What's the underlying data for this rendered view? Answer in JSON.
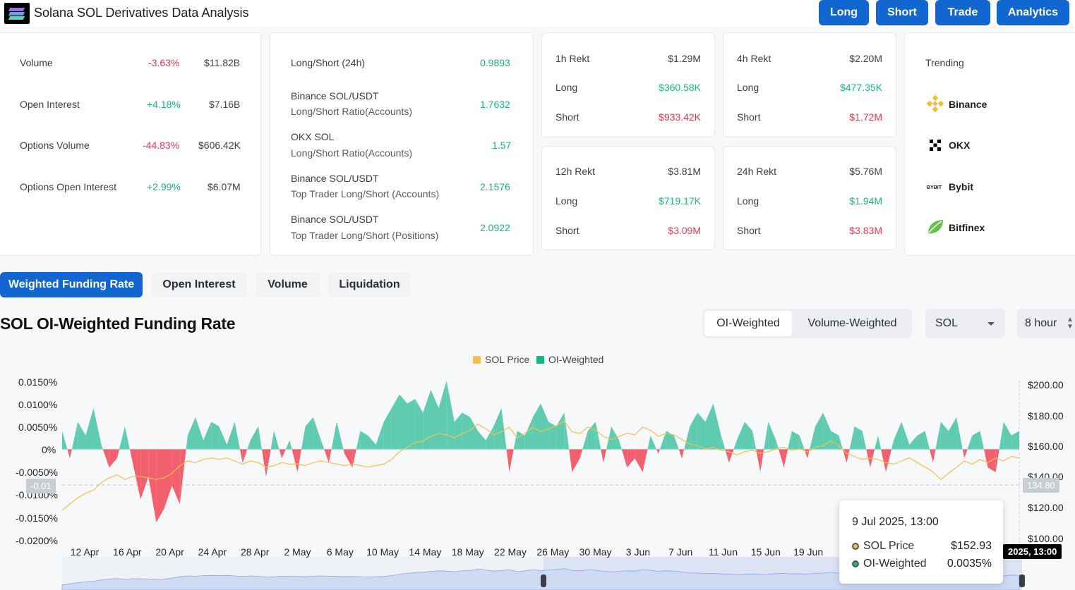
{
  "header": {
    "title": "Solana SOL Derivatives Data Analysis",
    "buttons": [
      "Long",
      "Short",
      "Trade",
      "Analytics"
    ],
    "accent": "#1266cf"
  },
  "overview": {
    "rows": [
      {
        "label": "Volume",
        "change": "-3.63%",
        "value": "$11.82B",
        "dir": "neg"
      },
      {
        "label": "Open Interest",
        "change": "+4.18%",
        "value": "$7.16B",
        "dir": "pos"
      },
      {
        "label": "Options Volume",
        "change": "-44.83%",
        "value": "$606.42K",
        "dir": "neg"
      },
      {
        "label": "Options Open Interest",
        "change": "+2.99%",
        "value": "$6.07M",
        "dir": "pos"
      }
    ]
  },
  "ratios": {
    "rows": [
      {
        "line1": "Long/Short (24h)",
        "line2": "",
        "value": "0.9893"
      },
      {
        "line1": "Binance SOL/USDT",
        "line2": "Long/Short Ratio(Accounts)",
        "value": "1.7632"
      },
      {
        "line1": "OKX SOL",
        "line2": "Long/Short Ratio(Accounts)",
        "value": "1.57"
      },
      {
        "line1": "Binance SOL/USDT",
        "line2": "Top Trader Long/Short (Accounts)",
        "value": "2.1576"
      },
      {
        "line1": "Binance SOL/USDT",
        "line2": "Top Trader Long/Short (Positions)",
        "value": "2.0922"
      }
    ]
  },
  "rekt": {
    "cards": [
      {
        "title": "1h Rekt",
        "total": "$1.29M",
        "long_label": "Long",
        "long": "$360.58K",
        "short_label": "Short",
        "short": "$933.42K"
      },
      {
        "title": "4h Rekt",
        "total": "$2.20M",
        "long_label": "Long",
        "long": "$477.35K",
        "short_label": "Short",
        "short": "$1.72M"
      },
      {
        "title": "12h Rekt",
        "total": "$3.81M",
        "long_label": "Long",
        "long": "$719.17K",
        "short_label": "Short",
        "short": "$3.09M"
      },
      {
        "title": "24h Rekt",
        "total": "$5.76M",
        "long_label": "Long",
        "long": "$1.94M",
        "short_label": "Short",
        "short": "$3.83M"
      }
    ]
  },
  "trending": {
    "title": "Trending",
    "exchanges": [
      {
        "name": "Binance",
        "icon": "binance-icon"
      },
      {
        "name": "OKX",
        "icon": "okx-icon"
      },
      {
        "name": "Bybit",
        "icon": "bybit-icon"
      },
      {
        "name": "Bitfinex",
        "icon": "bitfinex-icon"
      }
    ]
  },
  "tabs": [
    "Weighted Funding Rate",
    "Open Interest",
    "Volume",
    "Liquidation"
  ],
  "chart_header": {
    "title": "SOL OI-Weighted Funding Rate",
    "weighting_options": [
      "OI-Weighted",
      "Volume-Weighted"
    ],
    "coin": "SOL",
    "interval": "8 hour"
  },
  "chart_data": {
    "type": "area",
    "legend": [
      {
        "name": "SOL Price",
        "color": "#f2c14e"
      },
      {
        "name": "OI-Weighted",
        "color": "#10b981"
      }
    ],
    "legend_position": "top-center",
    "y_left": {
      "ticks": [
        "0.0150%",
        "0.0100%",
        "0.0050%",
        "0%",
        "-0.0050%",
        "-0.0100%",
        "-0.0150%",
        "-0.0200%"
      ],
      "range": [
        -0.02,
        0.015
      ]
    },
    "y_right": {
      "ticks": [
        "$200.00",
        "$180.00",
        "$160.00",
        "$140.00",
        "$120.00",
        "$100.00"
      ],
      "range": [
        100,
        200
      ]
    },
    "x_ticks": [
      "12 Apr",
      "16 Apr",
      "20 Apr",
      "24 Apr",
      "28 Apr",
      "2 May",
      "6 May",
      "10 May",
      "14 May",
      "18 May",
      "22 May",
      "26 May",
      "30 May",
      "3 Jun",
      "7 Jun",
      "11 Jun",
      "15 Jun",
      "19 Jun"
    ],
    "series": [
      {
        "name": "OI-Weighted",
        "positive_color": "#5fcbb0",
        "negative_color": "#f2606e",
        "values": [
          0.004,
          -0.002,
          0.006,
          0.003,
          0.009,
          0.001,
          -0.004,
          -0.002,
          0.005,
          -0.003,
          -0.011,
          -0.006,
          -0.016,
          -0.013,
          -0.008,
          -0.012,
          0.003,
          0.007,
          0.002,
          0.006,
          0.005,
          0.001,
          0.006,
          -0.003,
          0.002,
          0.005,
          -0.006,
          0.004,
          -0.002,
          0.002,
          -0.005,
          0.005,
          0.007,
          0.002,
          -0.003,
          0.006,
          -0.001,
          -0.004,
          0.004,
          0.003,
          0.001,
          0.006,
          0.009,
          0.012,
          0.01,
          0.011,
          0.008,
          0.013,
          0.009,
          0.015,
          0.006,
          0.008,
          0.007,
          0.004,
          0.002,
          0.005,
          0.009,
          -0.005,
          0.004,
          0.003,
          0.007,
          0.01,
          0.006,
          0.005,
          0.008,
          -0.005,
          -0.002,
          0.004,
          0.006,
          -0.003,
          0.005,
          0.002,
          -0.004,
          -0.002,
          -0.005,
          0.003,
          -0.001,
          0.004,
          0.003,
          -0.002,
          0.005,
          0.008,
          0.006,
          0.01,
          0.003,
          -0.003,
          0.002,
          0.006,
          0.004,
          -0.005,
          0.006,
          0.002,
          -0.004,
          0.004,
          0.003,
          -0.002,
          0.005,
          0.008,
          0.004,
          0.003,
          -0.003,
          0.005,
          0.004,
          -0.004,
          0.003,
          -0.005,
          0.002,
          0.006,
          0.001,
          0.003,
          0.004,
          -0.003,
          0.006,
          0.004,
          0.007,
          -0.002,
          0.003,
          0.004,
          -0.004,
          -0.005,
          0.006,
          0.003,
          0.004
        ],
        "current": "0.0035%"
      },
      {
        "name": "SOL Price",
        "color": "#f2c14e",
        "values": [
          118,
          122,
          126,
          129,
          131,
          136,
          139,
          141,
          138,
          140,
          140,
          139,
          138,
          139,
          142,
          147,
          150,
          149,
          151,
          152,
          151,
          152,
          150,
          148,
          150,
          149,
          146,
          147,
          149,
          148,
          148,
          147,
          149,
          150,
          149,
          148,
          147,
          148,
          147,
          146,
          147,
          148,
          151,
          156,
          159,
          162,
          163,
          166,
          168,
          167,
          165,
          168,
          170,
          174,
          171,
          167,
          169,
          172,
          165,
          168,
          172,
          169,
          171,
          173,
          176,
          169,
          168,
          172,
          170,
          166,
          164,
          166,
          168,
          167,
          172,
          170,
          166,
          168,
          167,
          164,
          161,
          160,
          158,
          159,
          157,
          156,
          154,
          156,
          157,
          155,
          156,
          158,
          159,
          157,
          158,
          156,
          159,
          160,
          163,
          160,
          155,
          153,
          151,
          152,
          151,
          149,
          148,
          150,
          152,
          149,
          146,
          143,
          138,
          142,
          146,
          150,
          148,
          151,
          149,
          152,
          150,
          153,
          152
        ],
        "current": "$152.93"
      }
    ],
    "crosshair": {
      "left_value": "-0.01",
      "right_value": "134.80",
      "time": "2025, 13:00"
    },
    "tooltip": {
      "date": "9 Jul 2025, 13:00",
      "rows": [
        {
          "label": "SOL Price",
          "value": "$152.93"
        },
        {
          "label": "OI-Weighted",
          "value": "0.0035%"
        }
      ]
    }
  }
}
